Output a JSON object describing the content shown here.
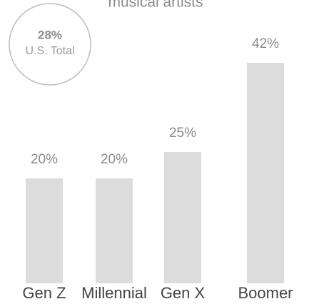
{
  "chart_data": {
    "type": "bar",
    "title": "musical artists",
    "categories": [
      "Gen Z",
      "Millennial",
      "Gen X",
      "Boomer"
    ],
    "values": [
      20,
      20,
      25,
      42
    ],
    "value_labels": [
      "20%",
      "20%",
      "25%",
      "42%"
    ],
    "color": "#dcdcdc",
    "annotation": {
      "value": 28,
      "label": "28%",
      "text": "U.S. Total"
    }
  }
}
